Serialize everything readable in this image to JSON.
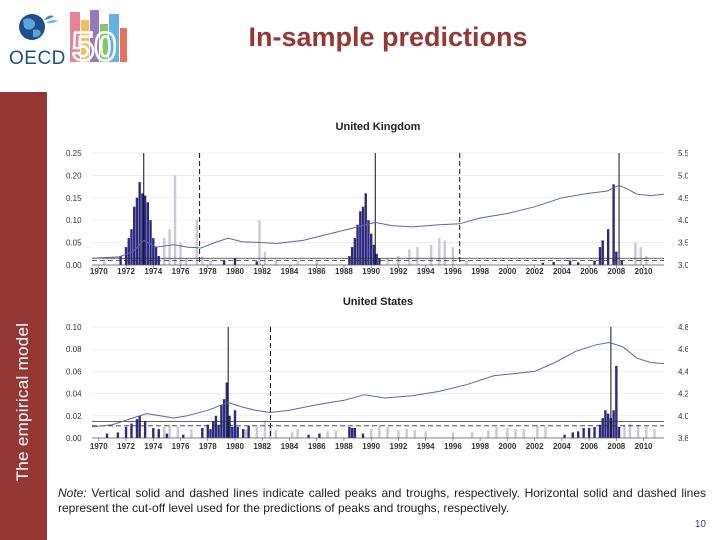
{
  "slide": {
    "title": "In-sample predictions",
    "sidebar_label": "The empirical model",
    "page_number": "10",
    "logo_text": "OECD",
    "logo_number": "50",
    "note_label": "Note:",
    "note_text": " Vertical solid and dashed lines indicate called peaks and troughs, respectively. Horizontal solid and dashed lines represent the cut-off level used for the predictions of peaks and troughs, respectively."
  },
  "colors": {
    "accent": "#953735",
    "peak_bar": "#2e2a80",
    "trough_bar": "#c9c6e0",
    "line": "#5a6a9a"
  },
  "chart_data": [
    {
      "type": "bar",
      "title": "United Kingdom",
      "y_left_ticks": [
        "0.00",
        "0.05",
        "0.10",
        "0.15",
        "0.20",
        "0.25"
      ],
      "y_right_ticks": [
        "3.0",
        "3.5",
        "4.0",
        "4.5",
        "5.0",
        "5.5"
      ],
      "x_ticks": [
        "1970",
        "1972",
        "1974",
        "1976",
        "1978",
        "1980",
        "1982",
        "1984",
        "1986",
        "1988",
        "1990",
        "1992",
        "1994",
        "1996",
        "1998",
        "2000",
        "2002",
        "2004",
        "2006",
        "2008",
        "2010"
      ],
      "ylim": [
        0,
        0.25
      ],
      "y2lim": [
        3.0,
        5.5
      ],
      "xlim": [
        1969.5,
        2011.5
      ],
      "peak_threshold": 0.015,
      "trough_threshold": 0.01,
      "peaks_called": [
        1973.3,
        1990.3,
        2008.2
      ],
      "troughs_called": [
        1977.4,
        1996.5
      ],
      "peak_probabilities": [
        [
          1971.6,
          0.02
        ],
        [
          1972.0,
          0.04
        ],
        [
          1972.2,
          0.06
        ],
        [
          1972.4,
          0.08
        ],
        [
          1972.6,
          0.13
        ],
        [
          1972.8,
          0.15
        ],
        [
          1973.0,
          0.185
        ],
        [
          1973.2,
          0.16
        ],
        [
          1973.4,
          0.155
        ],
        [
          1973.6,
          0.14
        ],
        [
          1973.8,
          0.1
        ],
        [
          1974.0,
          0.06
        ],
        [
          1974.2,
          0.04
        ],
        [
          1974.4,
          0.02
        ],
        [
          1979.2,
          0.01
        ],
        [
          1980.0,
          0.015
        ],
        [
          1981.6,
          0.008
        ],
        [
          1988.4,
          0.02
        ],
        [
          1988.6,
          0.04
        ],
        [
          1988.8,
          0.06
        ],
        [
          1989.0,
          0.09
        ],
        [
          1989.2,
          0.12
        ],
        [
          1989.4,
          0.13
        ],
        [
          1989.6,
          0.16
        ],
        [
          1989.8,
          0.1
        ],
        [
          1990.0,
          0.07
        ],
        [
          1990.2,
          0.045
        ],
        [
          1990.4,
          0.025
        ],
        [
          1990.6,
          0.015
        ],
        [
          2002.6,
          0.005
        ],
        [
          2003.4,
          0.007
        ],
        [
          2004.6,
          0.01
        ],
        [
          2005.2,
          0.006
        ],
        [
          2006.4,
          0.01
        ],
        [
          2006.8,
          0.04
        ],
        [
          2007.0,
          0.055
        ],
        [
          2007.4,
          0.08
        ],
        [
          2007.8,
          0.18
        ],
        [
          2008.0,
          0.03
        ],
        [
          2008.4,
          0.01
        ]
      ],
      "trough_probabilities": [
        [
          1970.4,
          0.008
        ],
        [
          1974.8,
          0.06
        ],
        [
          1975.2,
          0.08
        ],
        [
          1975.6,
          0.2
        ],
        [
          1976.0,
          0.05
        ],
        [
          1976.4,
          0.015
        ],
        [
          1977.2,
          0.1
        ],
        [
          1977.6,
          0.02
        ],
        [
          1978.2,
          0.01
        ],
        [
          1981.8,
          0.1
        ],
        [
          1982.2,
          0.03
        ],
        [
          1983.0,
          0.01
        ],
        [
          1984.6,
          0.01
        ],
        [
          1986.0,
          0.01
        ],
        [
          1991.2,
          0.015
        ],
        [
          1992.0,
          0.02
        ],
        [
          1992.8,
          0.035
        ],
        [
          1993.4,
          0.04
        ],
        [
          1994.4,
          0.045
        ],
        [
          1995.0,
          0.06
        ],
        [
          1995.4,
          0.055
        ],
        [
          1996.0,
          0.04
        ],
        [
          1997.0,
          0.01
        ],
        [
          2009.4,
          0.05
        ],
        [
          2009.8,
          0.04
        ],
        [
          2010.2,
          0.02
        ]
      ],
      "line_series": [
        [
          1969.5,
          3.15
        ],
        [
          1971.5,
          3.18
        ],
        [
          1972.5,
          3.3
        ],
        [
          1973.3,
          3.55
        ],
        [
          1974.2,
          3.4
        ],
        [
          1975.5,
          3.45
        ],
        [
          1976.5,
          3.4
        ],
        [
          1977.5,
          3.38
        ],
        [
          1978.5,
          3.5
        ],
        [
          1979.5,
          3.6
        ],
        [
          1980.5,
          3.52
        ],
        [
          1982,
          3.5
        ],
        [
          1983,
          3.48
        ],
        [
          1985,
          3.55
        ],
        [
          1987,
          3.7
        ],
        [
          1989,
          3.85
        ],
        [
          1990.3,
          3.95
        ],
        [
          1991.5,
          3.88
        ],
        [
          1993,
          3.85
        ],
        [
          1995,
          3.9
        ],
        [
          1996.5,
          3.92
        ],
        [
          1998,
          4.05
        ],
        [
          2000,
          4.15
        ],
        [
          2002,
          4.3
        ],
        [
          2004,
          4.5
        ],
        [
          2006,
          4.6
        ],
        [
          2007.3,
          4.65
        ],
        [
          2008.2,
          4.78
        ],
        [
          2008.8,
          4.7
        ],
        [
          2009.5,
          4.58
        ],
        [
          2010.5,
          4.55
        ],
        [
          2011.5,
          4.58
        ]
      ]
    },
    {
      "type": "bar",
      "title": "United States",
      "y_left_ticks": [
        "0.00",
        "0.02",
        "0.04",
        "0.06",
        "0.08",
        "0.10"
      ],
      "y_right_ticks": [
        "3.8",
        "4.0",
        "4.2",
        "4.4",
        "4.6",
        "4.8"
      ],
      "x_ticks": [
        "1970",
        "1972",
        "1974",
        "1976",
        "1978",
        "1980",
        "1982",
        "1984",
        "1986",
        "1988",
        "1990",
        "1992",
        "1994",
        "1996",
        "1998",
        "2000",
        "2002",
        "2004",
        "2006",
        "2008",
        "2010"
      ],
      "ylim": [
        0,
        0.1
      ],
      "y2lim": [
        3.8,
        4.8
      ],
      "xlim": [
        1969.5,
        2011.5
      ],
      "peak_threshold": 0.015,
      "trough_threshold": 0.011,
      "peaks_called": [
        1979.5,
        2007.6
      ],
      "troughs_called": [
        1982.6
      ],
      "peak_probabilities": [
        [
          1970.6,
          0.004
        ],
        [
          1971.4,
          0.005
        ],
        [
          1972.0,
          0.01
        ],
        [
          1972.4,
          0.013
        ],
        [
          1972.8,
          0.017
        ],
        [
          1973.0,
          0.02
        ],
        [
          1973.4,
          0.015
        ],
        [
          1974.0,
          0.009
        ],
        [
          1974.4,
          0.008
        ],
        [
          1975.0,
          0.004
        ],
        [
          1976.2,
          0.003
        ],
        [
          1977.6,
          0.009
        ],
        [
          1978.0,
          0.012
        ],
        [
          1978.2,
          0.008
        ],
        [
          1978.4,
          0.015
        ],
        [
          1978.6,
          0.02
        ],
        [
          1978.8,
          0.012
        ],
        [
          1979.0,
          0.03
        ],
        [
          1979.2,
          0.035
        ],
        [
          1979.4,
          0.05
        ],
        [
          1979.6,
          0.02
        ],
        [
          1979.8,
          0.01
        ],
        [
          1980.0,
          0.025
        ],
        [
          1980.2,
          0.01
        ],
        [
          1980.6,
          0.008
        ],
        [
          1981.0,
          0.011
        ],
        [
          1985.4,
          0.003
        ],
        [
          1986.2,
          0.004
        ],
        [
          1988.4,
          0.01
        ],
        [
          1988.6,
          0.009
        ],
        [
          1988.8,
          0.009
        ],
        [
          1989.4,
          0.004
        ],
        [
          2004.2,
          0.003
        ],
        [
          2004.8,
          0.005
        ],
        [
          2005.2,
          0.006
        ],
        [
          2005.6,
          0.009
        ],
        [
          2006.0,
          0.009
        ],
        [
          2006.4,
          0.01
        ],
        [
          2006.8,
          0.012
        ],
        [
          2007.0,
          0.018
        ],
        [
          2007.2,
          0.025
        ],
        [
          2007.4,
          0.022
        ],
        [
          2007.6,
          0.018
        ],
        [
          2007.8,
          0.025
        ],
        [
          2008.0,
          0.065
        ],
        [
          2008.2,
          0.01
        ]
      ],
      "trough_probabilities": [
        [
          1974.8,
          0.01
        ],
        [
          1975.2,
          0.012
        ],
        [
          1975.8,
          0.01
        ],
        [
          1976.8,
          0.008
        ],
        [
          1980.8,
          0.008
        ],
        [
          1981.6,
          0.01
        ],
        [
          1982.2,
          0.015
        ],
        [
          1982.6,
          0.01
        ],
        [
          1983.0,
          0.007
        ],
        [
          1984.2,
          0.005
        ],
        [
          1984.6,
          0.008
        ],
        [
          1986.8,
          0.006
        ],
        [
          1987.4,
          0.007
        ],
        [
          1990.0,
          0.008
        ],
        [
          1990.6,
          0.011
        ],
        [
          1991.2,
          0.01
        ],
        [
          1992.0,
          0.007
        ],
        [
          1992.6,
          0.008
        ],
        [
          1993.2,
          0.007
        ],
        [
          1994.0,
          0.006
        ],
        [
          1996.0,
          0.005
        ],
        [
          1997.4,
          0.005
        ],
        [
          1998.6,
          0.007
        ],
        [
          1999.2,
          0.01
        ],
        [
          2000.0,
          0.009
        ],
        [
          2000.6,
          0.008
        ],
        [
          2001.2,
          0.008
        ],
        [
          2002.2,
          0.012
        ],
        [
          2002.8,
          0.01
        ],
        [
          2008.6,
          0.012
        ],
        [
          2009.0,
          0.013
        ],
        [
          2009.6,
          0.012
        ],
        [
          2010.2,
          0.01
        ],
        [
          2010.8,
          0.008
        ]
      ],
      "line_series": [
        [
          1969.5,
          3.9
        ],
        [
          1971,
          3.92
        ],
        [
          1972.5,
          3.98
        ],
        [
          1973.5,
          4.02
        ],
        [
          1974.5,
          4.0
        ],
        [
          1975.5,
          3.98
        ],
        [
          1976.5,
          4.0
        ],
        [
          1978,
          4.05
        ],
        [
          1979.5,
          4.12
        ],
        [
          1980.5,
          4.08
        ],
        [
          1981.5,
          4.05
        ],
        [
          1982.6,
          4.03
        ],
        [
          1984,
          4.05
        ],
        [
          1986,
          4.1
        ],
        [
          1988,
          4.14
        ],
        [
          1989.5,
          4.19
        ],
        [
          1991,
          4.16
        ],
        [
          1993,
          4.18
        ],
        [
          1995,
          4.22
        ],
        [
          1997,
          4.28
        ],
        [
          1999,
          4.36
        ],
        [
          2000.5,
          4.38
        ],
        [
          2002,
          4.4
        ],
        [
          2003.5,
          4.48
        ],
        [
          2005,
          4.58
        ],
        [
          2006.5,
          4.64
        ],
        [
          2007.5,
          4.66
        ],
        [
          2008.5,
          4.62
        ],
        [
          2009.5,
          4.52
        ],
        [
          2010.5,
          4.48
        ],
        [
          2011.5,
          4.47
        ]
      ]
    }
  ]
}
